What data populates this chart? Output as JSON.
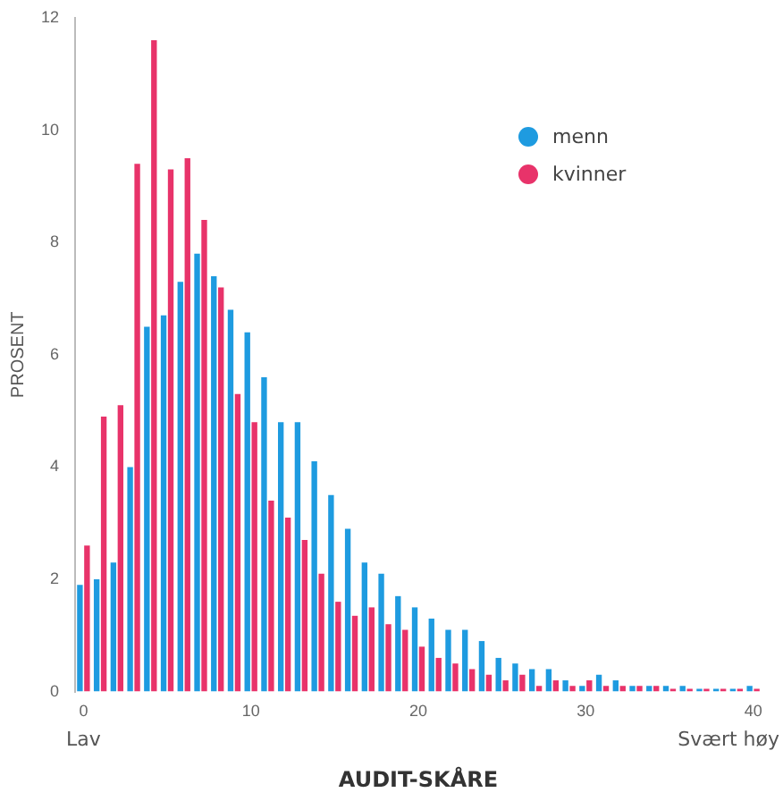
{
  "chart_data": {
    "type": "bar",
    "xlabel": "AUDIT-SKÅRE",
    "ylabel": "PROSENT",
    "categories": [
      "0",
      null,
      null,
      null,
      null,
      null,
      null,
      null,
      null,
      null,
      "10",
      null,
      null,
      null,
      null,
      null,
      null,
      null,
      null,
      null,
      "20",
      null,
      null,
      null,
      null,
      null,
      null,
      null,
      null,
      null,
      "30",
      null,
      null,
      null,
      null,
      null,
      null,
      null,
      null,
      null,
      "40"
    ],
    "series": [
      {
        "name": "menn",
        "color": "#1e9be0",
        "values": [
          1.9,
          2.0,
          2.3,
          4.0,
          6.5,
          6.7,
          7.3,
          7.8,
          7.4,
          6.8,
          6.4,
          5.6,
          4.8,
          4.8,
          4.1,
          3.5,
          2.9,
          2.3,
          2.1,
          1.7,
          1.5,
          1.3,
          1.1,
          1.1,
          0.9,
          0.6,
          0.5,
          0.4,
          0.4,
          0.2,
          0.1,
          0.3,
          0.2,
          0.1,
          0.1,
          0.1,
          0.1,
          0.05,
          0.05,
          0.05,
          0.1
        ]
      },
      {
        "name": "kvinner",
        "color": "#e8336a",
        "values": [
          2.6,
          4.9,
          5.1,
          9.4,
          11.6,
          9.3,
          9.5,
          8.4,
          7.2,
          5.3,
          4.8,
          3.4,
          3.1,
          2.7,
          2.1,
          1.6,
          1.35,
          1.5,
          1.2,
          1.1,
          0.8,
          0.6,
          0.5,
          0.4,
          0.3,
          0.2,
          0.3,
          0.1,
          0.2,
          0.1,
          0.2,
          0.1,
          0.1,
          0.1,
          0.1,
          0.05,
          0.05,
          0.05,
          0.05,
          0.05,
          0.05
        ]
      }
    ],
    "ylim": [
      0,
      12
    ],
    "yticks": [
      0,
      2,
      4,
      6,
      8,
      10,
      12
    ],
    "grid": false,
    "legend": "top right",
    "marker": "circle",
    "annotations": [
      "Lav",
      "Svært høy"
    ]
  }
}
